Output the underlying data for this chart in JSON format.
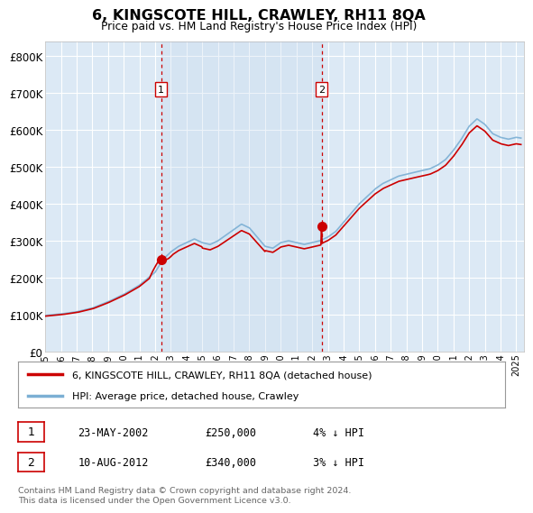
{
  "title": "6, KINGSCOTE HILL, CRAWLEY, RH11 8QA",
  "subtitle": "Price paid vs. HM Land Registry's House Price Index (HPI)",
  "background_color": "#dce9f5",
  "ylabel_ticks": [
    "£0",
    "£100K",
    "£200K",
    "£300K",
    "£400K",
    "£500K",
    "£600K",
    "£700K",
    "£800K"
  ],
  "ytick_values": [
    0,
    100000,
    200000,
    300000,
    400000,
    500000,
    600000,
    700000,
    800000
  ],
  "ylim": [
    0,
    840000
  ],
  "xlim_start": 1995.0,
  "xlim_end": 2025.5,
  "purchase1_date": 2002.385,
  "purchase1_price": 250000,
  "purchase2_date": 2012.607,
  "purchase2_price": 340000,
  "legend_line1": "6, KINGSCOTE HILL, CRAWLEY, RH11 8QA (detached house)",
  "legend_line2": "HPI: Average price, detached house, Crawley",
  "footer": "Contains HM Land Registry data © Crown copyright and database right 2024.\nThis data is licensed under the Open Government Licence v3.0.",
  "red_color": "#cc0000",
  "blue_color": "#7bafd4"
}
